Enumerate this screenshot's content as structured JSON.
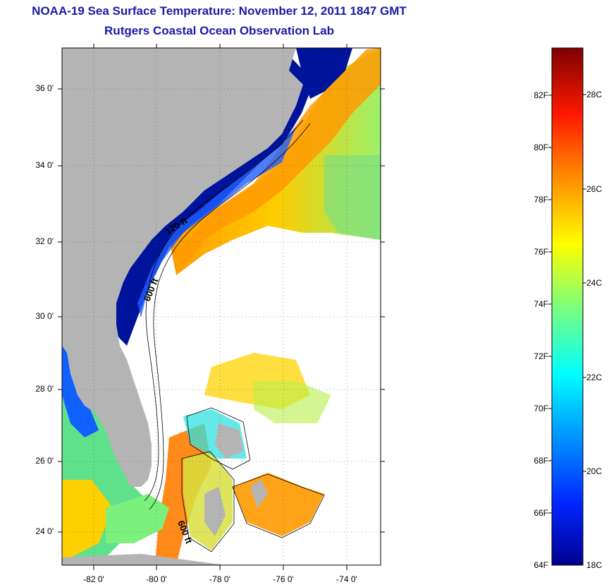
{
  "title_line1": "NOAA-19 Sea Surface Temperature:  November 12, 2011 1847 GMT",
  "title_line2": "Rutgers Coastal Ocean Observation Lab",
  "map": {
    "lon_ticks": [
      "-82 0'",
      "-80 0'",
      "-78 0'",
      "-76 0'",
      "-74 0'"
    ],
    "lat_ticks": [
      "36 0'",
      "34 0'",
      "32 0'",
      "30 0'",
      "28 0'",
      "26 0'",
      "24 0'"
    ],
    "contour_labels": [
      "120 ft",
      "600 ft",
      "600 ft"
    ],
    "colors": {
      "land": "#b4b4b4",
      "cold": "#00139b",
      "warm": "#ff8a00"
    }
  },
  "colorbar": {
    "fahrenheit": [
      "82F",
      "80F",
      "78F",
      "76F",
      "74F",
      "72F",
      "70F",
      "68F",
      "66F",
      "64F"
    ],
    "celsius": [
      "28C",
      "26C",
      "24C",
      "22C",
      "20C",
      "18C"
    ]
  }
}
